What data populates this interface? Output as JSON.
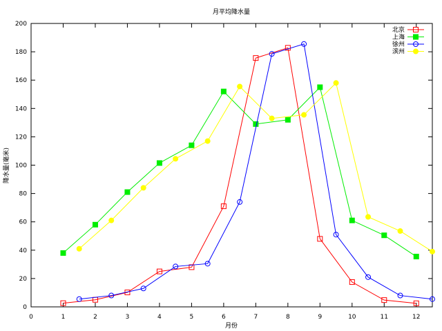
{
  "chart_data": {
    "type": "line",
    "title": "月平均降水量",
    "xlabel": "月份",
    "ylabel": "降水量(毫米)",
    "xlim": [
      0,
      12.5
    ],
    "ylim": [
      0,
      200
    ],
    "xticks": [
      0,
      1,
      2,
      3,
      4,
      5,
      6,
      7,
      8,
      9,
      10,
      11,
      12
    ],
    "yticks": [
      0,
      20,
      40,
      60,
      80,
      100,
      120,
      140,
      160,
      180,
      200
    ],
    "grid": false,
    "legend_position": "top-right",
    "series": [
      {
        "name": "北京",
        "color": "#ff0000",
        "marker": "open-square",
        "x": [
          1,
          2,
          3,
          4,
          5,
          6,
          7,
          8,
          9,
          10,
          11,
          12
        ],
        "y": [
          2.6,
          5.0,
          10.2,
          25.0,
          28.0,
          71.0,
          175.6,
          182.8,
          48.0,
          17.5,
          4.8,
          2.5
        ]
      },
      {
        "name": "上海",
        "color": "#00ee00",
        "marker": "filled-square",
        "x": [
          1,
          2,
          3,
          4,
          5,
          6,
          7,
          8,
          9,
          10,
          11,
          12
        ],
        "y": [
          38.0,
          58.0,
          81.0,
          101.5,
          114.0,
          152.0,
          129.0,
          132.0,
          155.0,
          61.0,
          50.5,
          35.5
        ]
      },
      {
        "name": "徐州",
        "color": "#0000ff",
        "marker": "open-circle",
        "x": [
          1.5,
          2.5,
          3.5,
          4.5,
          5.5,
          6.5,
          7.5,
          8.5,
          9.5,
          10.5,
          11.5,
          12.5
        ],
        "y": [
          5.5,
          8.0,
          13.0,
          28.5,
          30.5,
          74.0,
          178.5,
          185.5,
          51.0,
          21.0,
          8.0,
          5.5
        ]
      },
      {
        "name": "滨州",
        "color": "#ffff00",
        "marker": "filled-circle",
        "x": [
          1.5,
          2.5,
          3.5,
          4.5,
          5.5,
          6.5,
          7.5,
          8.5,
          9.5,
          10.5,
          11.5,
          12.5
        ],
        "y": [
          41.0,
          61.0,
          84.0,
          104.5,
          117.0,
          155.5,
          133.0,
          135.5,
          158.0,
          63.5,
          53.5,
          39.0
        ]
      }
    ]
  }
}
